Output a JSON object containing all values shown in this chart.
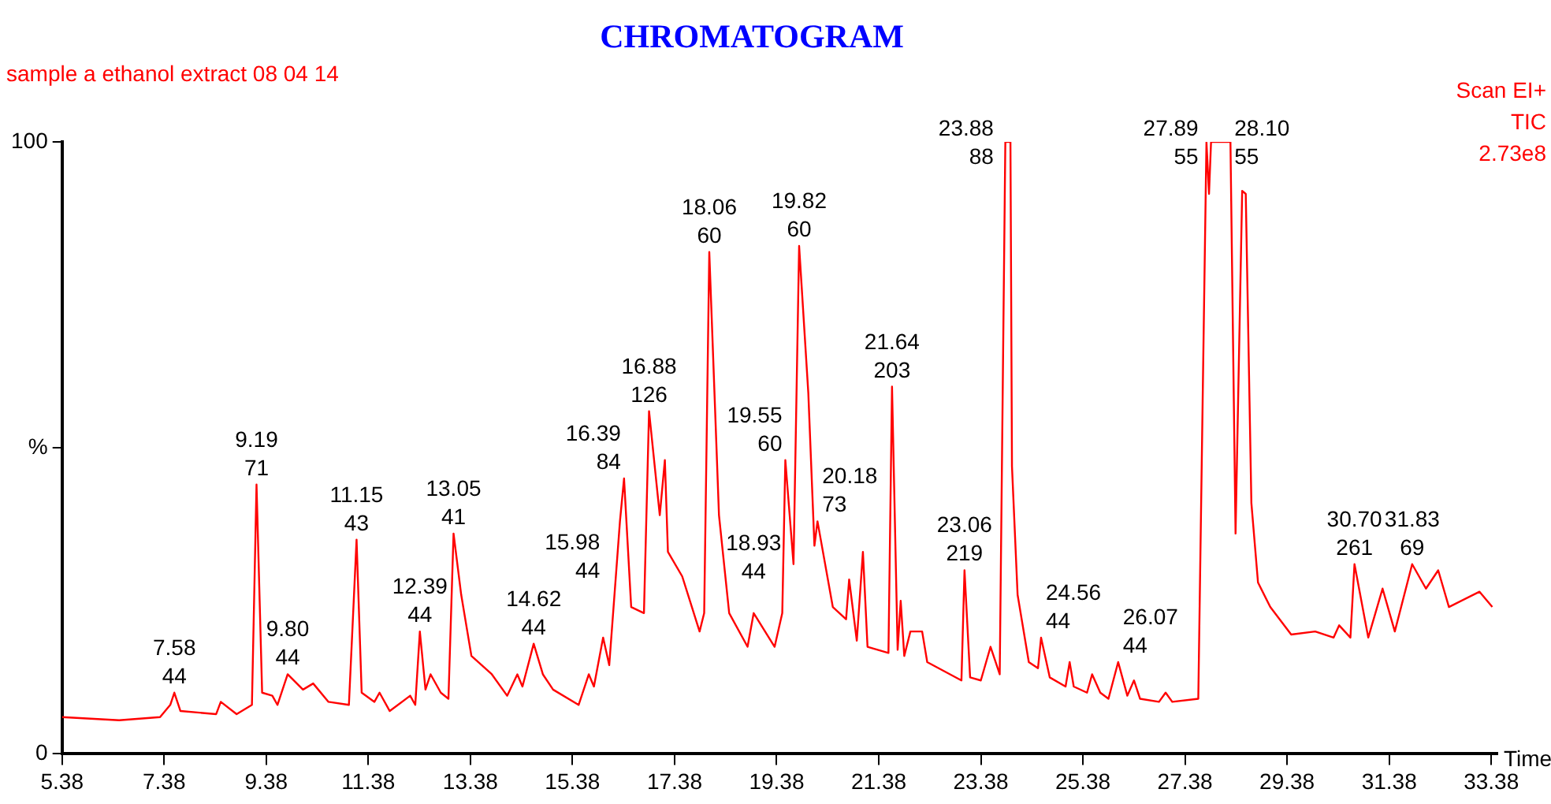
{
  "chart_data": {
    "type": "line",
    "title": "CHROMATOGRAM",
    "subtitle": "sample a ethanol extract 08 04 14",
    "xlabel": "Time",
    "x": [
      5.38,
      6.5,
      7.3,
      7.5,
      7.58,
      7.7,
      8.4,
      8.49,
      8.8,
      9.1,
      9.19,
      9.3,
      9.5,
      9.6,
      9.8,
      10.1,
      10.3,
      10.6,
      11.0,
      11.15,
      11.25,
      11.5,
      11.6,
      11.8,
      12.2,
      12.3,
      12.39,
      12.5,
      12.6,
      12.8,
      12.95,
      13.05,
      13.2,
      13.4,
      13.8,
      14.1,
      14.3,
      14.4,
      14.62,
      14.8,
      15.0,
      15.5,
      15.7,
      15.8,
      15.98,
      16.1,
      16.31,
      16.39,
      16.53,
      16.78,
      16.88,
      17.09,
      17.19,
      17.25,
      17.53,
      17.87,
      17.96,
      18.06,
      18.25,
      18.45,
      18.81,
      18.93,
      19.34,
      19.49,
      19.55,
      19.71,
      19.82,
      20.0,
      20.12,
      20.18,
      20.48,
      20.74,
      20.8,
      20.95,
      21.07,
      21.16,
      21.57,
      21.64,
      21.75,
      21.81,
      21.88,
      22.0,
      22.23,
      22.33,
      23.0,
      23.06,
      23.17,
      23.38,
      23.57,
      23.75,
      23.86,
      23.96,
      23.99,
      24.1,
      24.32,
      24.5,
      24.56,
      24.73,
      25.04,
      25.12,
      25.2,
      25.46,
      25.56,
      25.72,
      25.88,
      26.07,
      26.25,
      26.38,
      26.5,
      26.87,
      27.0,
      27.13,
      27.64,
      27.8,
      27.85,
      27.89,
      28.27,
      28.37,
      28.5,
      28.57,
      28.68,
      28.81,
      29.05,
      29.46,
      29.93,
      30.29,
      30.4,
      30.62,
      30.7,
      30.97,
      31.25,
      31.49,
      31.83,
      32.1,
      32.34,
      32.55,
      33.15,
      33.4
    ],
    "series": [
      {
        "color": "#ff0000",
        "values": [
          6,
          5.5,
          6,
          8,
          10,
          7,
          6.5,
          8.5,
          6.5,
          8,
          44,
          10,
          9.5,
          8,
          13,
          10.5,
          11.5,
          8.5,
          8,
          35,
          10,
          8.5,
          10,
          7,
          9.5,
          8,
          20,
          10.5,
          13,
          10,
          9,
          36,
          26,
          16,
          13,
          9.5,
          13,
          11,
          18,
          13,
          10.5,
          8,
          13,
          11,
          19,
          14.5,
          38,
          45,
          24,
          23,
          56,
          39,
          48,
          33,
          29,
          20,
          23,
          82,
          39,
          23,
          17.5,
          23,
          17.5,
          23,
          48,
          31,
          83,
          59,
          34,
          38,
          24,
          22,
          28.5,
          18.5,
          33,
          17.5,
          16.5,
          60,
          17,
          25,
          16,
          20,
          20,
          15,
          12,
          30,
          12.5,
          12,
          17.5,
          13,
          100,
          100,
          47,
          26,
          15,
          14,
          19,
          12.5,
          11,
          15,
          11,
          10,
          13,
          10,
          9,
          15,
          9.5,
          12,
          9,
          8.5,
          10,
          8.5,
          9,
          100,
          91.5,
          100,
          100,
          36,
          92,
          91.5,
          41,
          28,
          24,
          19.5,
          20,
          19,
          21,
          19,
          31,
          19,
          27,
          20,
          31,
          27,
          30,
          24,
          26.5,
          24
        ]
      }
    ],
    "xlim": [
      5.38,
      33.5
    ],
    "xticks": [
      5.38,
      7.38,
      9.38,
      11.38,
      13.38,
      15.38,
      17.38,
      19.38,
      21.38,
      23.38,
      25.38,
      27.38,
      29.38,
      31.38,
      33.38
    ],
    "ylim": [
      0,
      100
    ],
    "yticks": [
      0,
      {
        "value": 50,
        "label": "%"
      },
      100
    ],
    "grid": false,
    "legend": false,
    "marker": "none",
    "line_style": "solid",
    "annotations": [
      "Scan EI+",
      "TIC",
      "2.73e8",
      {
        "text": "7.58\n44",
        "x": 7.58,
        "y": 10
      },
      {
        "text": "9.19\n71",
        "x": 9.19,
        "y": 44
      },
      {
        "text": "9.80\n44",
        "x": 9.8,
        "y": 13
      },
      {
        "text": "11.15\n43",
        "x": 11.15,
        "y": 35
      },
      {
        "text": "12.39\n44",
        "x": 12.39,
        "y": 20
      },
      {
        "text": "13.05\n41",
        "x": 13.05,
        "y": 36
      },
      {
        "text": "14.62\n44",
        "x": 14.62,
        "y": 18
      },
      {
        "text": "15.98\n44",
        "x": 15.98,
        "y": 19
      },
      {
        "text": "16.39\n84",
        "x": 16.39,
        "y": 45
      },
      {
        "text": "16.88\n126",
        "x": 16.88,
        "y": 56
      },
      {
        "text": "18.06\n60",
        "x": 18.06,
        "y": 82
      },
      {
        "text": "18.93\n44",
        "x": 18.93,
        "y": 23
      },
      {
        "text": "19.55\n60",
        "x": 19.55,
        "y": 48
      },
      {
        "text": "19.82\n60",
        "x": 19.82,
        "y": 83
      },
      {
        "text": "20.18\n73",
        "x": 20.18,
        "y": 38
      },
      {
        "text": "21.64\n203",
        "x": 21.64,
        "y": 60
      },
      {
        "text": "23.06\n219",
        "x": 23.06,
        "y": 30
      },
      {
        "text": "23.88\n88",
        "x": 23.88,
        "y": 100
      },
      {
        "text": "24.56\n44",
        "x": 24.56,
        "y": 19
      },
      {
        "text": "26.07\n44",
        "x": 26.07,
        "y": 15
      },
      {
        "text": "27.89\n55",
        "x": 27.89,
        "y": 100
      },
      {
        "text": "28.10\n55",
        "x": 28.1,
        "y": 100
      },
      {
        "text": "30.70\n261",
        "x": 30.7,
        "y": 31
      },
      {
        "text": "31.83\n69",
        "x": 31.83,
        "y": 31
      }
    ]
  }
}
